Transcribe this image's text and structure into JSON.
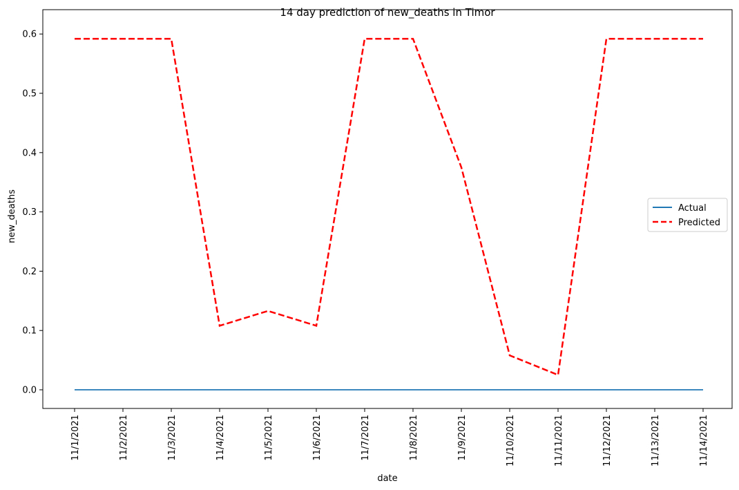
{
  "chart_data": {
    "type": "line",
    "title": "14 day prediction of new_deaths in Timor",
    "xlabel": "date",
    "ylabel": "new_deaths",
    "categories": [
      "11/1/2021",
      "11/2/2021",
      "11/3/2021",
      "11/4/2021",
      "11/5/2021",
      "11/6/2021",
      "11/7/2021",
      "11/8/2021",
      "11/9/2021",
      "11/10/2021",
      "11/11/2021",
      "11/12/2021",
      "11/13/2021",
      "11/14/2021"
    ],
    "yticks": [
      "0.0",
      "0.1",
      "0.2",
      "0.3",
      "0.4",
      "0.5",
      "0.6"
    ],
    "ylim": [
      -0.03,
      0.62
    ],
    "grid": false,
    "legend_position": "center-right",
    "series": [
      {
        "name": "Actual",
        "color": "#1f77b4",
        "style": "solid",
        "values": [
          0,
          0,
          0,
          0,
          0,
          0,
          0,
          0,
          0,
          0,
          0,
          0,
          0,
          0
        ]
      },
      {
        "name": "Predicted",
        "color": "#ff0000",
        "style": "dashed",
        "values": [
          0.592,
          0.592,
          0.592,
          0.108,
          0.133,
          0.108,
          0.592,
          0.592,
          0.375,
          0.058,
          0.025,
          0.592,
          0.592,
          0.592
        ]
      }
    ]
  }
}
